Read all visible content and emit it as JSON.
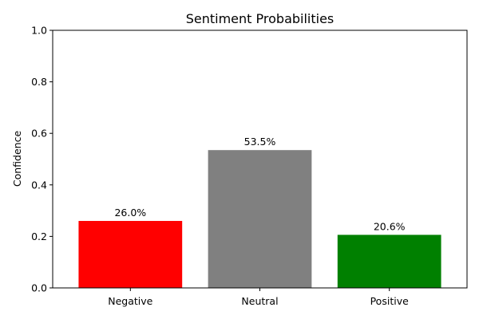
{
  "chart_data": {
    "type": "bar",
    "title": "Sentiment Probabilities",
    "xlabel": "",
    "ylabel": "Confidence",
    "categories": [
      "Negative",
      "Neutral",
      "Positive"
    ],
    "values": [
      0.26,
      0.535,
      0.206
    ],
    "data_labels": [
      "26.0%",
      "53.5%",
      "20.6%"
    ],
    "colors": [
      "#ff0000",
      "#808080",
      "#008000"
    ],
    "ylim": [
      0,
      1.0
    ],
    "yticks": [
      0.0,
      0.2,
      0.4,
      0.6,
      0.8,
      1.0
    ],
    "ytick_labels": [
      "0.0",
      "0.2",
      "0.4",
      "0.6",
      "0.8",
      "1.0"
    ],
    "grid": false,
    "legend": "none"
  }
}
